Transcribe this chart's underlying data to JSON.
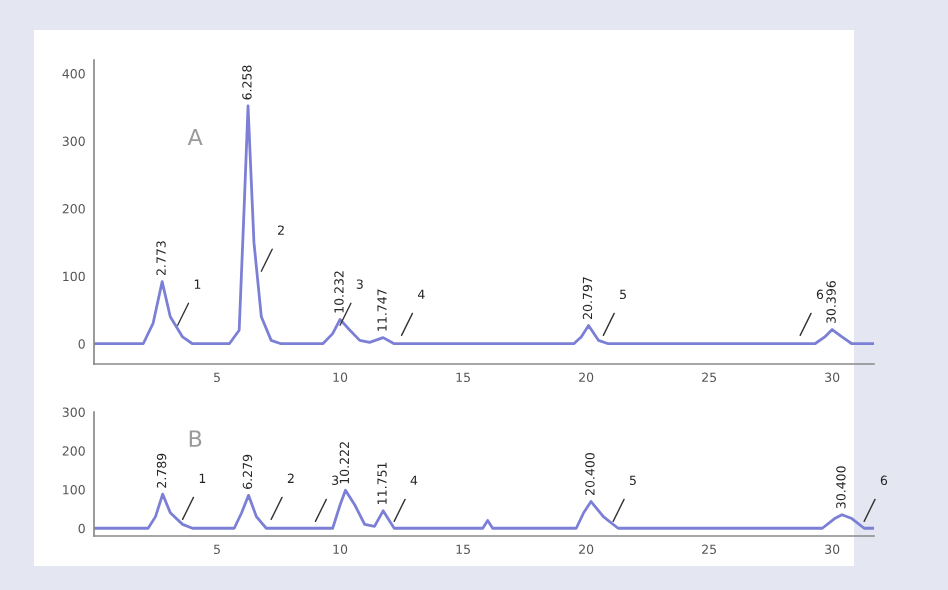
{
  "chart_data": [
    {
      "type": "line",
      "grid": false,
      "marker": "none",
      "line_style": "solid",
      "xlim": [
        0,
        31.7
      ],
      "xticks": [
        5,
        10,
        15,
        20,
        25,
        30
      ],
      "ylim": [
        -30,
        420
      ],
      "yticks": [
        0,
        100,
        200,
        300,
        400
      ],
      "series": [
        {
          "color": "#7b7fd6",
          "x": [
            0,
            2.0,
            2.4,
            2.77,
            3.1,
            3.6,
            4.0,
            5.5,
            5.9,
            6.1,
            6.26,
            6.5,
            6.8,
            7.2,
            7.6,
            9.3,
            9.7,
            10.0,
            10.4,
            10.8,
            11.2,
            11.75,
            12.2,
            19.5,
            19.8,
            20.1,
            20.5,
            20.9,
            29.3,
            29.7,
            30.0,
            30.4,
            30.8,
            31.7
          ],
          "values": [
            0,
            0,
            30,
            92,
            40,
            10,
            0,
            0,
            20,
            200,
            352,
            150,
            40,
            5,
            0,
            0,
            15,
            36,
            20,
            5,
            2,
            9,
            0,
            0,
            10,
            27,
            5,
            0,
            0,
            10,
            21,
            10,
            0,
            0
          ]
        }
      ],
      "annotations": [
        "A",
        {
          "text": "2.773",
          "x": 2.77,
          "y": 92
        },
        {
          "text": "6.258",
          "x": 6.26,
          "y": 352
        },
        {
          "text": "10.232",
          "x": 10.0,
          "y": 36
        },
        {
          "text": "11.747",
          "x": 11.75,
          "y": 9
        },
        {
          "text": "20.797",
          "x": 20.1,
          "y": 27
        },
        {
          "text": "30.396",
          "x": 30.0,
          "y": 21
        },
        {
          "text": "1",
          "x": 3.3,
          "y": 20
        },
        {
          "text": "2",
          "x": 6.7,
          "y": 100
        },
        {
          "text": "3",
          "x": 9.9,
          "y": 20
        },
        {
          "text": "4",
          "x": 12.4,
          "y": 5
        },
        {
          "text": "5",
          "x": 20.6,
          "y": 5
        },
        {
          "text": "6",
          "x": 28.6,
          "y": 5
        }
      ]
    },
    {
      "type": "line",
      "grid": false,
      "marker": "none",
      "line_style": "solid",
      "xlim": [
        0,
        31.7
      ],
      "xticks": [
        5,
        10,
        15,
        20,
        25,
        30
      ],
      "ylim": [
        -20,
        300
      ],
      "yticks": [
        0,
        100,
        200,
        300
      ],
      "series": [
        {
          "color": "#7b7fd6",
          "x": [
            0,
            2.2,
            2.5,
            2.79,
            3.1,
            3.6,
            4.0,
            5.7,
            6.0,
            6.28,
            6.6,
            7.0,
            9.7,
            10.0,
            10.22,
            10.6,
            11.0,
            11.4,
            11.75,
            12.2,
            15.8,
            16.0,
            16.2,
            19.6,
            19.9,
            20.2,
            20.7,
            21.3,
            29.6,
            30.1,
            30.4,
            30.8,
            31.3,
            31.7
          ],
          "values": [
            0,
            0,
            30,
            88,
            40,
            10,
            0,
            0,
            40,
            85,
            30,
            0,
            0,
            60,
            98,
            60,
            10,
            5,
            45,
            0,
            0,
            20,
            0,
            0,
            40,
            69,
            30,
            0,
            0,
            25,
            35,
            25,
            0,
            0
          ]
        }
      ],
      "annotations": [
        "B",
        {
          "text": "2.789",
          "x": 2.79,
          "y": 88
        },
        {
          "text": "6.279",
          "x": 6.28,
          "y": 85
        },
        {
          "text": "10.222",
          "x": 10.22,
          "y": 98
        },
        {
          "text": "11.751",
          "x": 11.75,
          "y": 45
        },
        {
          "text": "20.400",
          "x": 20.2,
          "y": 69
        },
        {
          "text": "30.400",
          "x": 30.4,
          "y": 35
        },
        {
          "text": "1",
          "x": 3.5,
          "y": 10
        },
        {
          "text": "2",
          "x": 7.1,
          "y": 10
        },
        {
          "text": "3",
          "x": 8.9,
          "y": 5
        },
        {
          "text": "4",
          "x": 12.1,
          "y": 5
        },
        {
          "text": "5",
          "x": 21.0,
          "y": 5
        },
        {
          "text": "6",
          "x": 31.2,
          "y": 5
        }
      ]
    }
  ]
}
